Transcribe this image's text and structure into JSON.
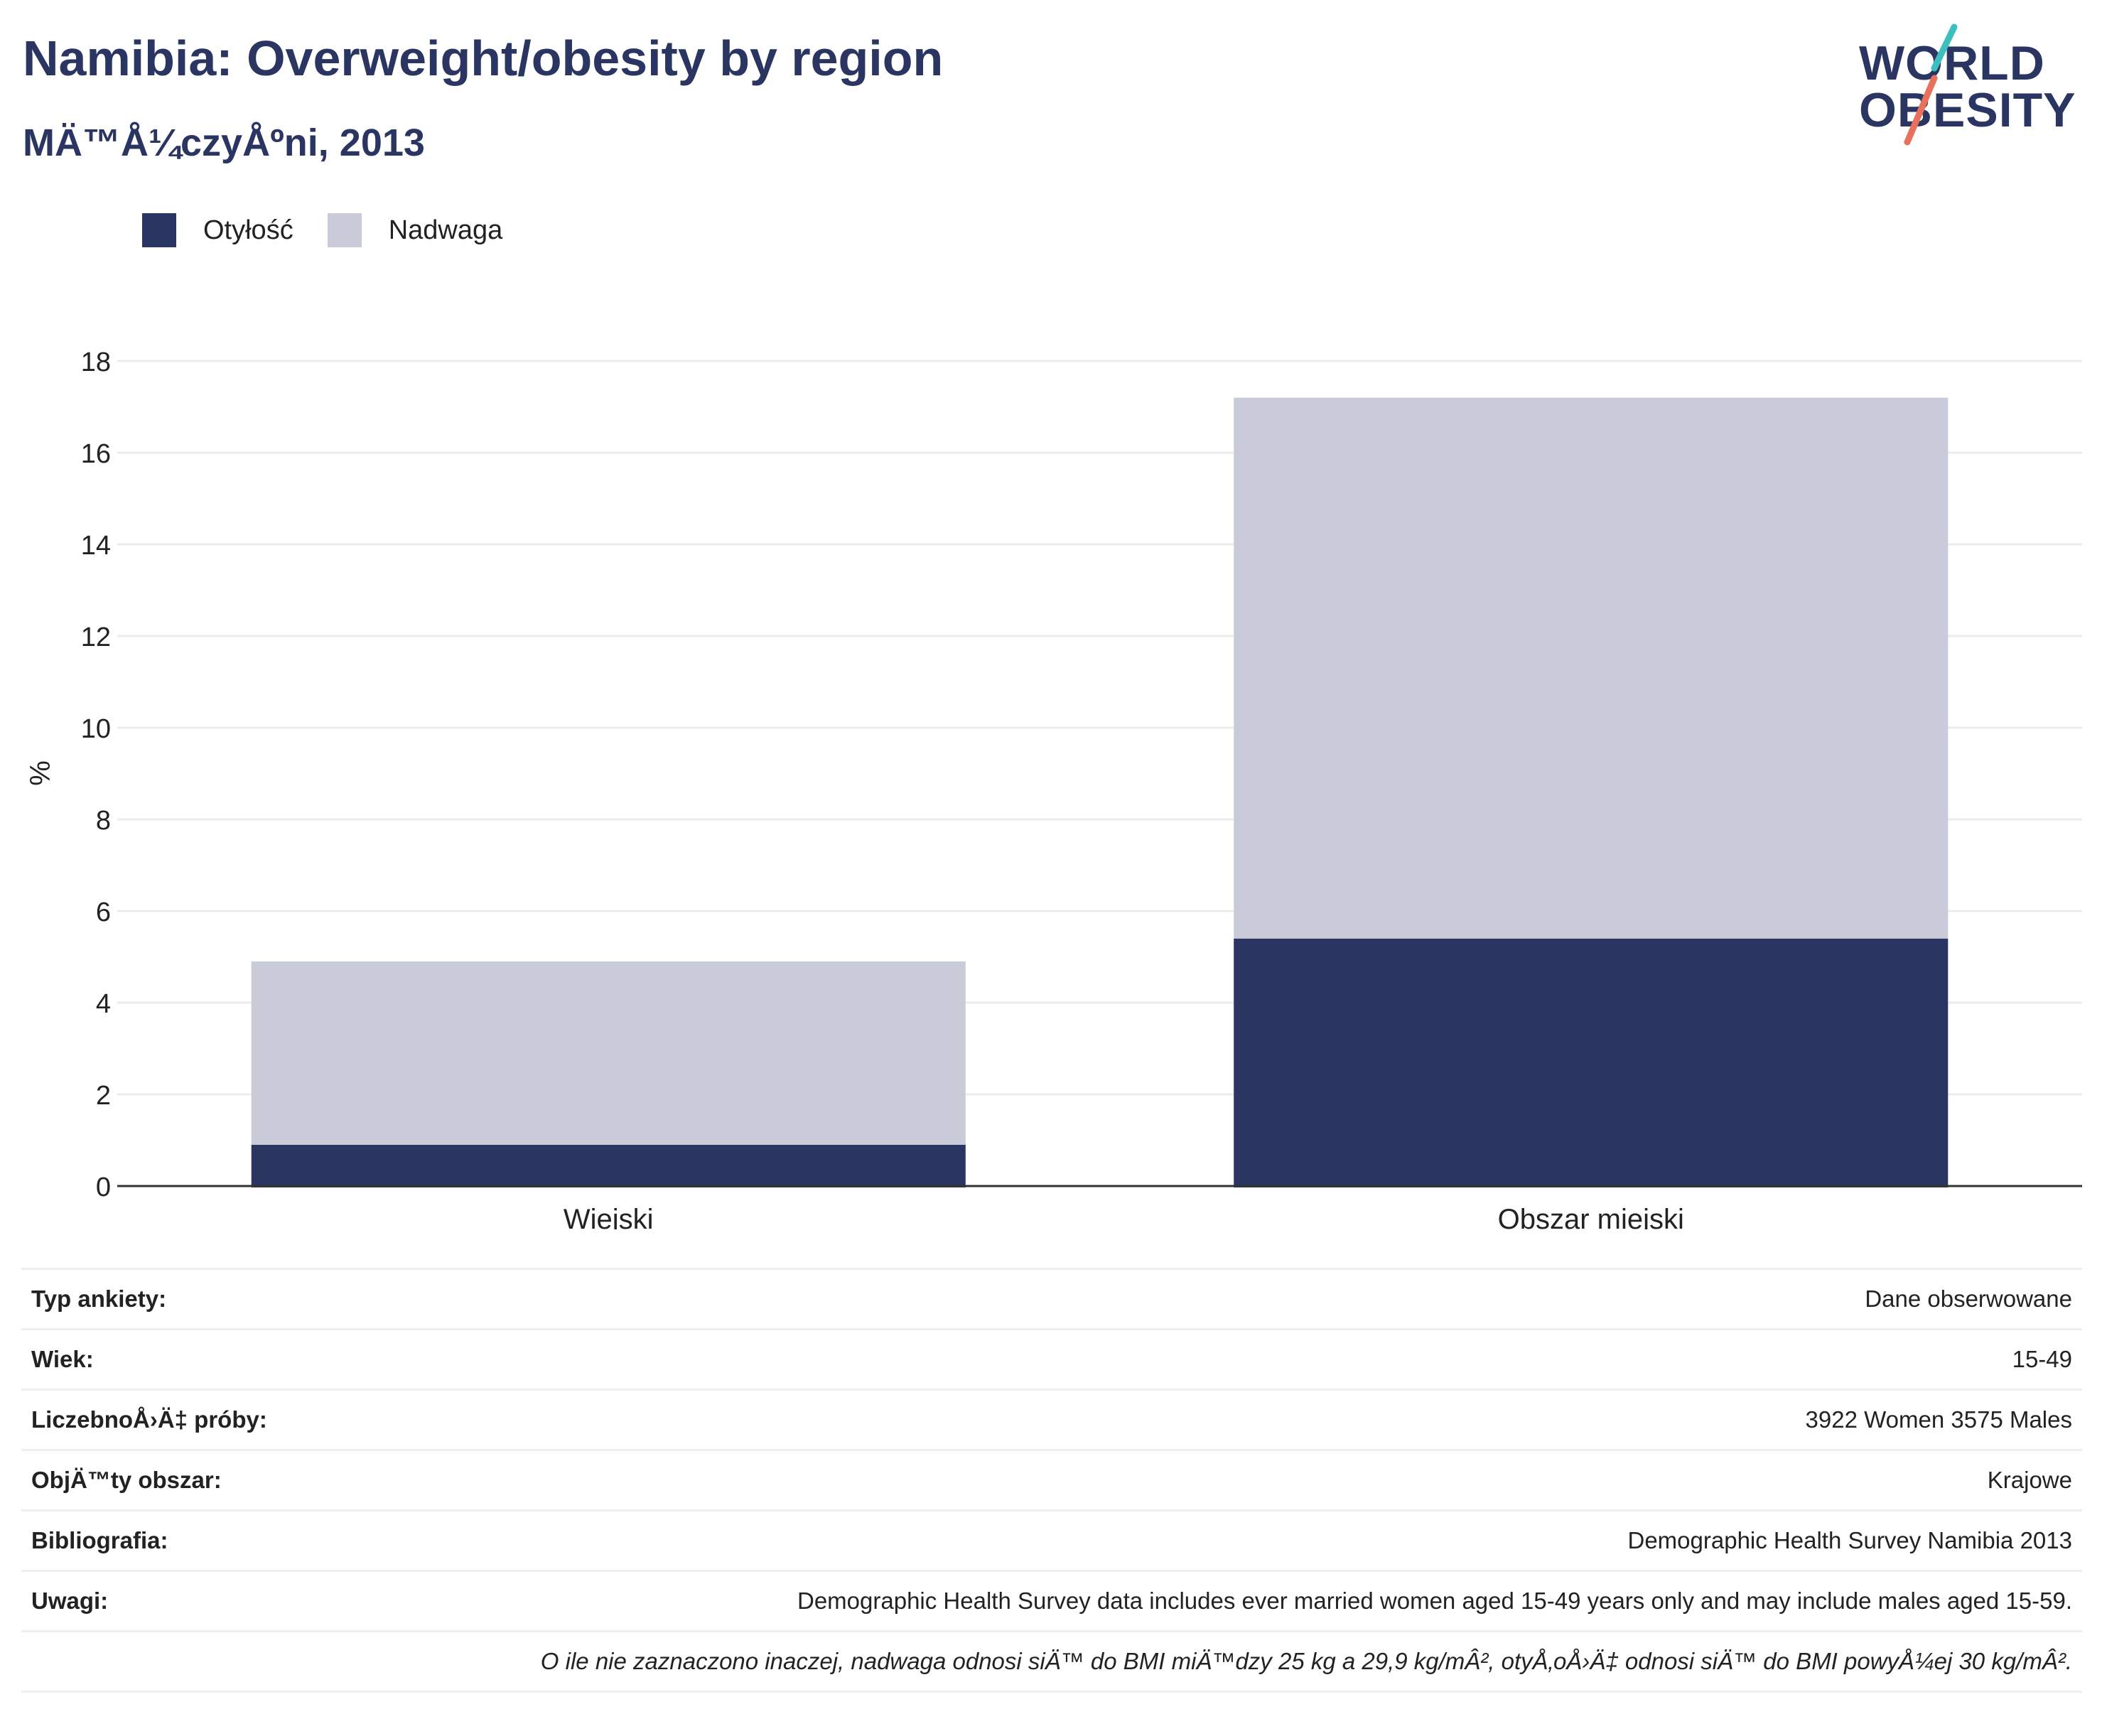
{
  "header": {
    "title": "Namibia: Overweight/obesity by region",
    "subtitle": "MÄ™Å¼czyÅºni, 2013"
  },
  "logo": {
    "line1": "WORLD",
    "line2": "OBESITY"
  },
  "colors": {
    "obesity": "#2a3561",
    "overweight": "#c9ccd8",
    "title": "#2a3561",
    "logo_accent_teal": "#3ebfbf",
    "logo_accent_coral": "#e8715e"
  },
  "legend": {
    "placement": "top-left",
    "items": [
      {
        "label": "Otyłość",
        "color": "#2a3561"
      },
      {
        "label": "Nadwaga",
        "color": "#c9ccd8"
      }
    ]
  },
  "chart_data": {
    "type": "bar",
    "stacked": true,
    "categories": [
      "Wiejski",
      "Obszar miejski"
    ],
    "series": [
      {
        "name": "Otyłość",
        "color": "#2a3561",
        "values": [
          0.9,
          5.4
        ]
      },
      {
        "name": "Nadwaga",
        "color": "#c9ccd8",
        "values": [
          4.0,
          11.8
        ]
      }
    ],
    "title": "Namibia: Overweight/obesity by region",
    "subtitle": "MÄ™Å¼czyÅºni, 2013",
    "xlabel": "",
    "ylabel": "%",
    "ylim": [
      0,
      18
    ],
    "yticks": [
      "0",
      "2",
      "4",
      "6",
      "8",
      "10",
      "12",
      "14",
      "16",
      "18"
    ],
    "grid": true,
    "legend_position": "top-left"
  },
  "info": {
    "rows": [
      {
        "key": "Typ ankiety:",
        "value": "Dane obserwowane"
      },
      {
        "key": "Wiek:",
        "value": "15-49"
      },
      {
        "key": "LiczebnoÅ›Ä‡ próby:",
        "value": "3922 Women 3575 Males"
      },
      {
        "key": "ObjÄ™ty obszar:",
        "value": "Krajowe"
      },
      {
        "key": "Bibliografia:",
        "value": "Demographic Health Survey Namibia 2013"
      },
      {
        "key": "Uwagi:",
        "value": "Demographic Health Survey data includes ever married women aged 15-49 years only and may include males aged 15-59."
      }
    ],
    "footnote": "O ile nie zaznaczono inaczej, nadwaga odnosi siÄ™ do BMI miÄ™dzy 25 kg a 29,9 kg/mÂ², otyÅ‚oÅ›Ä‡ odnosi siÄ™ do BMI powyÅ¼ej 30 kg/mÂ²."
  }
}
